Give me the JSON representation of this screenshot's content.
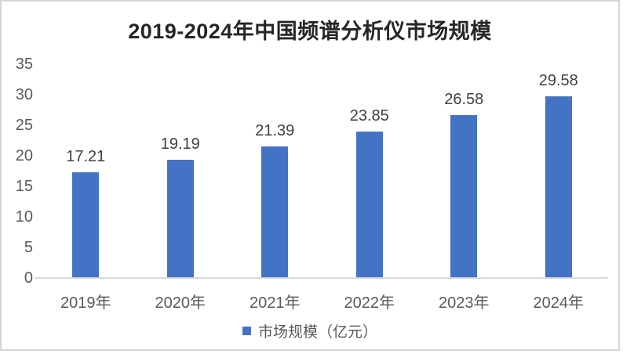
{
  "chart_data": {
    "type": "bar",
    "title": "2019-2024年中国频谱分析仪市场规模",
    "categories": [
      "2019年",
      "2020年",
      "2021年",
      "2022年",
      "2023年",
      "2024年"
    ],
    "values": [
      17.21,
      19.19,
      21.39,
      23.85,
      26.58,
      29.58
    ],
    "data_labels": [
      "17.21",
      "19.19",
      "21.39",
      "23.85",
      "26.58",
      "29.58"
    ],
    "series_name": "市场规模（亿元）",
    "xlabel": "",
    "ylabel": "",
    "ylim": [
      0,
      35
    ],
    "yticks": [
      0,
      5,
      10,
      15,
      20,
      25,
      30,
      35
    ],
    "grid": false,
    "legend_position": "bottom",
    "bar_color": "#4472C4",
    "title_color": "#262626",
    "axis_label_color": "#595959",
    "data_label_color": "#404040",
    "axis_line_color": "#d9d9d9"
  }
}
